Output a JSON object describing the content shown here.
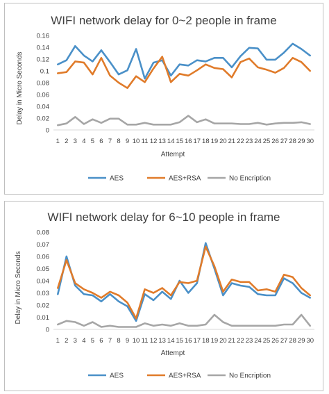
{
  "chart_data": [
    {
      "type": "line",
      "title": "WIFI network delay for 0~2 people in frame",
      "xlabel": "Attempt",
      "ylabel": "Delay in Micro Seconds",
      "ylim": [
        0,
        0.16
      ],
      "yticks": [
        "0",
        "0.02",
        "0.04",
        "0.06",
        "0.08",
        "0.1",
        "0.12",
        "0.14",
        "0.16"
      ],
      "grid": false,
      "legend_position": "bottom",
      "x": [
        1,
        2,
        3,
        4,
        5,
        6,
        7,
        8,
        9,
        10,
        11,
        12,
        13,
        14,
        15,
        16,
        17,
        18,
        19,
        20,
        21,
        22,
        23,
        24,
        25,
        26,
        27,
        28,
        29,
        30
      ],
      "x_labels": [
        "1",
        "2",
        "3",
        "4",
        "5",
        "6",
        "7",
        "8",
        "9",
        "10",
        "11",
        "12",
        "13",
        "14",
        "15",
        "16",
        "17",
        "18",
        "19",
        "20",
        "21",
        "22",
        "23",
        "24",
        "25",
        "26",
        "27",
        "28",
        "29",
        "30"
      ],
      "series": [
        {
          "name": "AES",
          "color": "#4a90c8",
          "values": [
            0.111,
            0.118,
            0.142,
            0.126,
            0.116,
            0.135,
            0.115,
            0.094,
            0.101,
            0.137,
            0.087,
            0.114,
            0.118,
            0.092,
            0.111,
            0.109,
            0.118,
            0.116,
            0.122,
            0.122,
            0.106,
            0.125,
            0.139,
            0.138,
            0.119,
            0.119,
            0.131,
            0.146,
            0.137,
            0.126
          ]
        },
        {
          "name": "AES+RSA",
          "color": "#e07b2a",
          "values": [
            0.096,
            0.098,
            0.116,
            0.114,
            0.094,
            0.122,
            0.092,
            0.08,
            0.071,
            0.091,
            0.081,
            0.104,
            0.124,
            0.081,
            0.095,
            0.092,
            0.101,
            0.111,
            0.105,
            0.103,
            0.089,
            0.115,
            0.121,
            0.106,
            0.102,
            0.097,
            0.105,
            0.122,
            0.115,
            0.1
          ]
        },
        {
          "name": "No Encription",
          "color": "#a6a6a6",
          "values": [
            0.008,
            0.011,
            0.022,
            0.01,
            0.018,
            0.012,
            0.019,
            0.019,
            0.009,
            0.009,
            0.012,
            0.009,
            0.009,
            0.009,
            0.013,
            0.024,
            0.013,
            0.018,
            0.011,
            0.011,
            0.011,
            0.01,
            0.01,
            0.012,
            0.009,
            0.011,
            0.012,
            0.012,
            0.013,
            0.01
          ]
        }
      ]
    },
    {
      "type": "line",
      "title": "WIFI network delay for 6~10 people in frame",
      "xlabel": "Attempt",
      "ylabel": "Delay in Micro Seconds",
      "ylim": [
        0,
        0.08
      ],
      "yticks": [
        "0",
        "0.01",
        "0.02",
        "0.03",
        "0.04",
        "0.05",
        "0.06",
        "0.07",
        "0.08"
      ],
      "grid": false,
      "legend_position": "bottom",
      "x": [
        1,
        2,
        3,
        4,
        5,
        6,
        7,
        8,
        9,
        10,
        11,
        12,
        13,
        14,
        15,
        16,
        17,
        18,
        19,
        20,
        21,
        22,
        23,
        24,
        25,
        26,
        27,
        28,
        29,
        30
      ],
      "x_labels": [
        "1",
        "2",
        "3",
        "4",
        "5",
        "6",
        "7",
        "8",
        "9",
        "10",
        "11",
        "12",
        "13",
        "14",
        "15",
        "16",
        "17",
        "18",
        "19",
        "20",
        "21",
        "22",
        "23",
        "24",
        "25",
        "26",
        "27",
        "28",
        "29",
        "30"
      ],
      "series": [
        {
          "name": "AES",
          "color": "#4a90c8",
          "values": [
            0.029,
            0.06,
            0.036,
            0.029,
            0.028,
            0.023,
            0.029,
            0.023,
            0.019,
            0.007,
            0.029,
            0.024,
            0.031,
            0.025,
            0.04,
            0.03,
            0.038,
            0.071,
            0.05,
            0.028,
            0.038,
            0.036,
            0.035,
            0.029,
            0.028,
            0.028,
            0.042,
            0.038,
            0.03,
            0.026
          ]
        },
        {
          "name": "AES+RSA",
          "color": "#e07b2a",
          "values": [
            0.034,
            0.057,
            0.038,
            0.033,
            0.03,
            0.026,
            0.031,
            0.028,
            0.022,
            0.009,
            0.033,
            0.03,
            0.034,
            0.028,
            0.039,
            0.038,
            0.04,
            0.068,
            0.052,
            0.031,
            0.041,
            0.039,
            0.039,
            0.032,
            0.033,
            0.031,
            0.045,
            0.043,
            0.034,
            0.028
          ]
        },
        {
          "name": "No Encription",
          "color": "#a6a6a6",
          "values": [
            0.004,
            0.007,
            0.006,
            0.003,
            0.006,
            0.002,
            0.003,
            0.002,
            0.002,
            0.002,
            0.005,
            0.003,
            0.004,
            0.003,
            0.005,
            0.003,
            0.003,
            0.004,
            0.012,
            0.006,
            0.003,
            0.003,
            0.003,
            0.003,
            0.003,
            0.003,
            0.004,
            0.004,
            0.012,
            0.003
          ]
        }
      ]
    }
  ]
}
